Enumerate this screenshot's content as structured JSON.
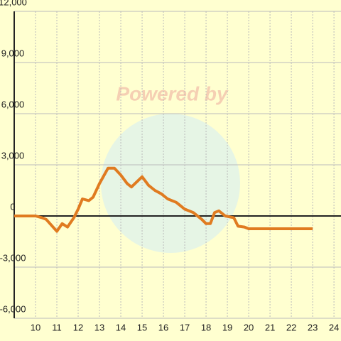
{
  "chart_data": {
    "type": "line",
    "watermark": "Powered by",
    "series": [
      {
        "color": "#e07b20",
        "x": [
          9,
          9.5,
          10,
          10.3,
          10.5,
          11,
          11.25,
          11.5,
          11.8,
          12,
          12.2,
          12.5,
          12.7,
          13,
          13.4,
          13.7,
          14,
          14.3,
          14.5,
          15,
          15.3,
          15.6,
          15.9,
          16.2,
          16.6,
          17,
          17.4,
          17.8,
          18,
          18.2,
          18.4,
          18.6,
          18.9,
          19.3,
          19.5,
          19.8,
          20,
          20.3,
          23
        ],
        "values": [
          0,
          0,
          0,
          -100,
          -200,
          -900,
          -450,
          -650,
          -100,
          400,
          1000,
          900,
          1100,
          1900,
          2800,
          2800,
          2400,
          1900,
          1700,
          2300,
          1800,
          1500,
          1300,
          1000,
          800,
          400,
          200,
          -200,
          -450,
          -450,
          200,
          300,
          0,
          -100,
          -600,
          -650,
          -750,
          -750,
          -750
        ]
      }
    ],
    "xlim": [
      9,
      24.33
    ],
    "xticks": [
      10,
      11,
      12,
      13,
      14,
      15,
      16,
      17,
      18,
      19,
      20,
      21,
      22,
      23,
      24
    ],
    "ylim": [
      -6000,
      12000
    ],
    "yticks": [
      {
        "value": -6000,
        "label": "-6,000"
      },
      {
        "value": -3000,
        "label": "-3,000"
      },
      0,
      {
        "value": 3000,
        "label": "3,000"
      },
      {
        "value": 6000,
        "label": "6,000"
      },
      {
        "value": 9000,
        "label": "9,000"
      },
      {
        "value": 12000,
        "label": "12,000"
      }
    ],
    "grid": true
  }
}
